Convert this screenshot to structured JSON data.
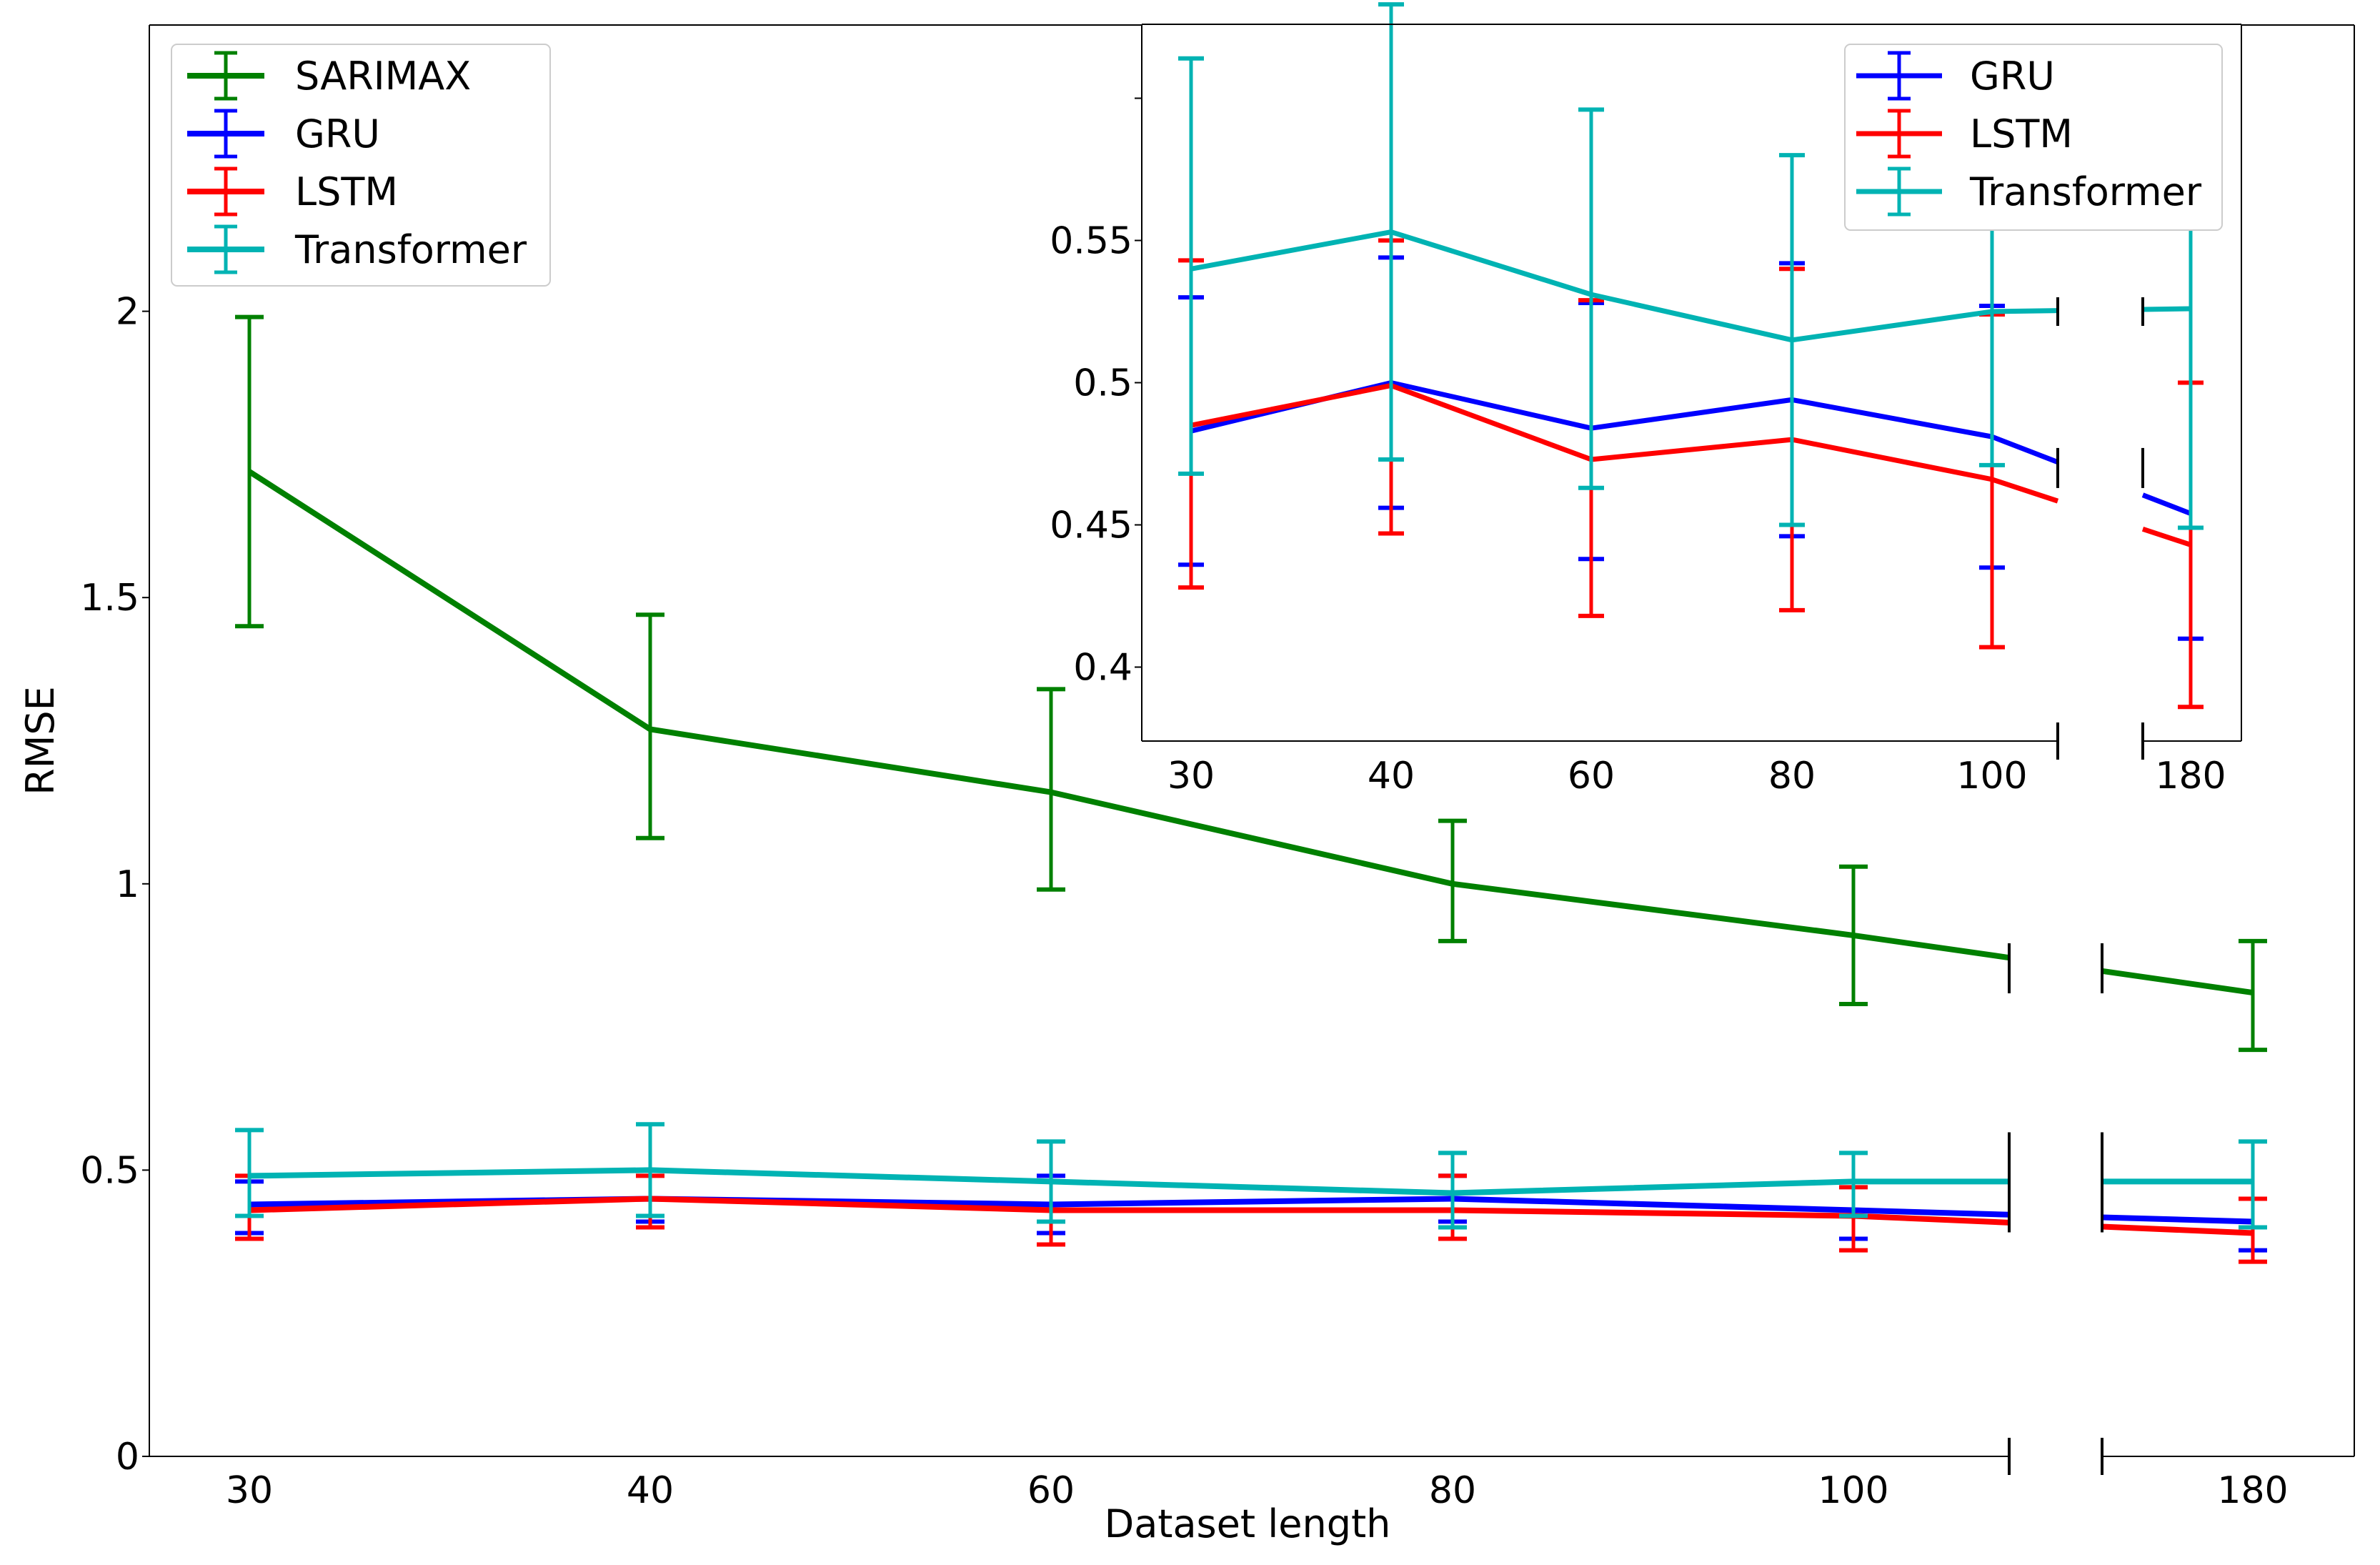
{
  "chart_data": [
    {
      "id": "main",
      "type": "line",
      "title": "",
      "xlabel": "Dataset length",
      "ylabel": "RMSE",
      "categories": [
        "30",
        "40",
        "60",
        "80",
        "100",
        "180"
      ],
      "x_axis_break_between": [
        "100",
        "180"
      ],
      "ylim": [
        0,
        2.5
      ],
      "yticks": [
        0,
        0.5,
        1,
        1.5,
        2
      ],
      "ytick_labels": [
        "0",
        "0.5",
        "1",
        "1.5",
        "2"
      ],
      "grid": false,
      "legend_position": "top-left",
      "series": [
        {
          "name": "SARIMAX",
          "color": "#008000",
          "values": [
            1.72,
            1.27,
            1.16,
            1.0,
            0.91,
            0.81
          ],
          "err_low": [
            1.45,
            1.08,
            0.99,
            0.9,
            0.79,
            0.71
          ],
          "err_high": [
            1.99,
            1.47,
            1.34,
            1.11,
            1.03,
            0.9
          ]
        },
        {
          "name": "GRU",
          "color": "#0000ff",
          "values": [
            0.44,
            0.45,
            0.44,
            0.45,
            0.43,
            0.41
          ],
          "err_low": [
            0.39,
            0.41,
            0.39,
            0.41,
            0.38,
            0.36
          ],
          "err_high": [
            0.48,
            0.5,
            0.49,
            0.49,
            0.48,
            0.45
          ]
        },
        {
          "name": "LSTM",
          "color": "#ff0000",
          "values": [
            0.43,
            0.45,
            0.43,
            0.43,
            0.42,
            0.39
          ],
          "err_low": [
            0.38,
            0.4,
            0.37,
            0.38,
            0.36,
            0.34
          ],
          "err_high": [
            0.49,
            0.49,
            0.48,
            0.49,
            0.47,
            0.45
          ]
        },
        {
          "name": "Transformer",
          "color": "#00b3b3",
          "values": [
            0.49,
            0.5,
            0.48,
            0.46,
            0.48,
            0.48
          ],
          "err_low": [
            0.42,
            0.42,
            0.41,
            0.4,
            0.42,
            0.4
          ],
          "err_high": [
            0.57,
            0.58,
            0.55,
            0.53,
            0.53,
            0.55
          ]
        }
      ]
    },
    {
      "id": "inset",
      "type": "line",
      "title": "",
      "xlabel": "",
      "ylabel": "",
      "categories": [
        "30",
        "40",
        "60",
        "80",
        "100",
        "180"
      ],
      "x_axis_break_between": [
        "100",
        "180"
      ],
      "ylim": [
        0.374,
        0.626
      ],
      "yticks": [
        0.4,
        0.45,
        0.5,
        0.55,
        0.6
      ],
      "ytick_labels": [
        "0.4",
        "0.45",
        "0.5",
        "0.55",
        ""
      ],
      "grid": false,
      "legend_position": "top-right",
      "series": [
        {
          "name": "GRU",
          "color": "#0000ff",
          "values": [
            0.483,
            0.5,
            0.484,
            0.494,
            0.481,
            0.454
          ],
          "err_low": [
            0.436,
            0.456,
            0.438,
            0.446,
            0.435,
            0.41
          ],
          "err_high": [
            0.53,
            0.544,
            0.528,
            0.542,
            0.527,
            0.5
          ]
        },
        {
          "name": "LSTM",
          "color": "#ff0000",
          "values": [
            0.485,
            0.499,
            0.473,
            0.48,
            0.466,
            0.443
          ],
          "err_low": [
            0.428,
            0.447,
            0.418,
            0.42,
            0.407,
            0.386
          ],
          "err_high": [
            0.543,
            0.55,
            0.529,
            0.54,
            0.524,
            0.5
          ]
        },
        {
          "name": "Transformer",
          "color": "#00b3b3",
          "values": [
            0.54,
            0.553,
            0.531,
            0.515,
            0.525,
            0.526
          ],
          "err_low": [
            0.468,
            0.473,
            0.463,
            0.45,
            0.471,
            0.449
          ],
          "err_high": [
            0.614,
            0.633,
            0.596,
            0.58,
            0.58,
            0.604
          ]
        }
      ]
    }
  ]
}
